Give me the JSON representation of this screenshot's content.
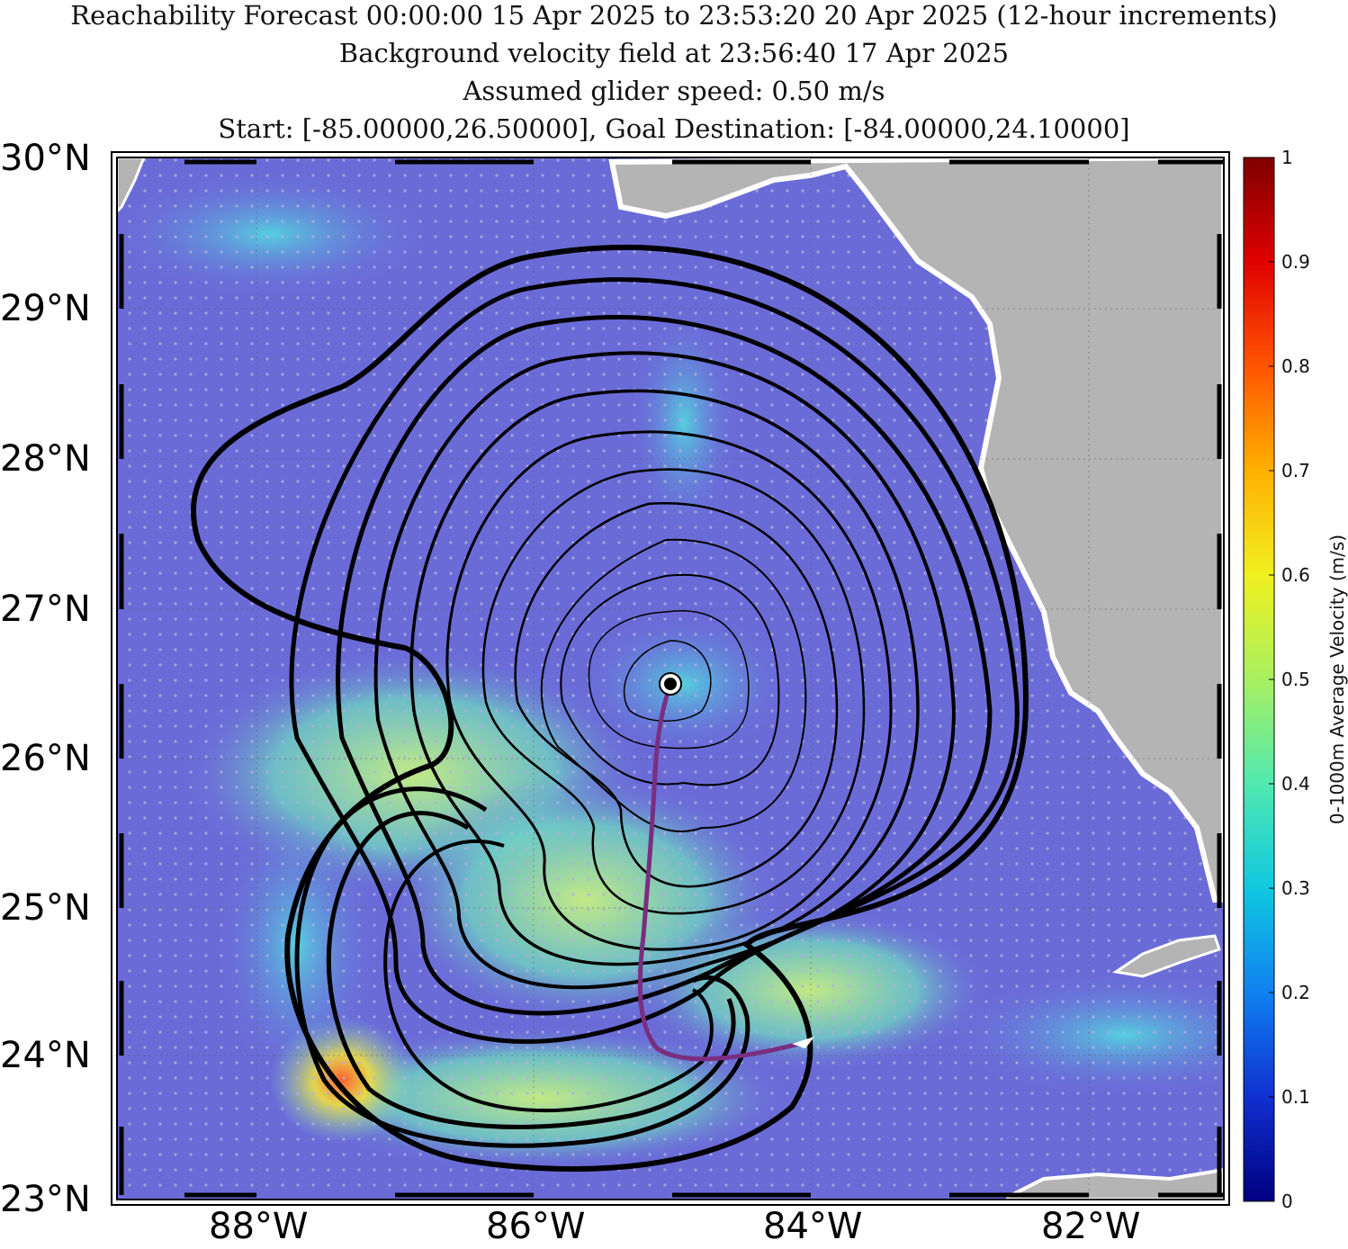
{
  "title": {
    "line1": "Reachability Forecast 00:00:00 15 Apr 2025 to 23:53:20 20 Apr 2025 (12-hour increments)",
    "line2": "Background velocity field at 23:56:40 17 Apr 2025",
    "line3": "Assumed glider speed: 0.50 m/s",
    "line4": "Start: [-85.00000,26.50000], Goal Destination: [-84.00000,24.10000]"
  },
  "axes": {
    "lat_labels": [
      "30°N",
      "29°N",
      "28°N",
      "27°N",
      "26°N",
      "25°N",
      "24°N",
      "23°N"
    ],
    "lon_labels": [
      "88°W",
      "86°W",
      "84°W",
      "82°W"
    ]
  },
  "colorbar": {
    "label": "0-1000m Average Velocity (m/s)",
    "ticks": [
      "1",
      "0.9",
      "0.8",
      "0.7",
      "0.6",
      "0.5",
      "0.4",
      "0.3",
      "0.2",
      "0.1",
      "0"
    ],
    "colors": [
      "#7f0000",
      "#e00000",
      "#ff5500",
      "#ffb000",
      "#f0f020",
      "#a8f060",
      "#50e8b0",
      "#10c8e0",
      "#1080f0",
      "#1030d0",
      "#000080"
    ]
  },
  "colors": {
    "ocean": "#6b6bd8",
    "land": "#b4b4b4",
    "contour": "#000000",
    "path": "#7a2e80",
    "start_marker": "#000000"
  },
  "map": {
    "start": {
      "lon": -85.0,
      "lat": 26.5
    },
    "goal": {
      "lon": -84.0,
      "lat": 24.1
    },
    "reachability_increment_hours": 12,
    "contour_count": 12
  }
}
